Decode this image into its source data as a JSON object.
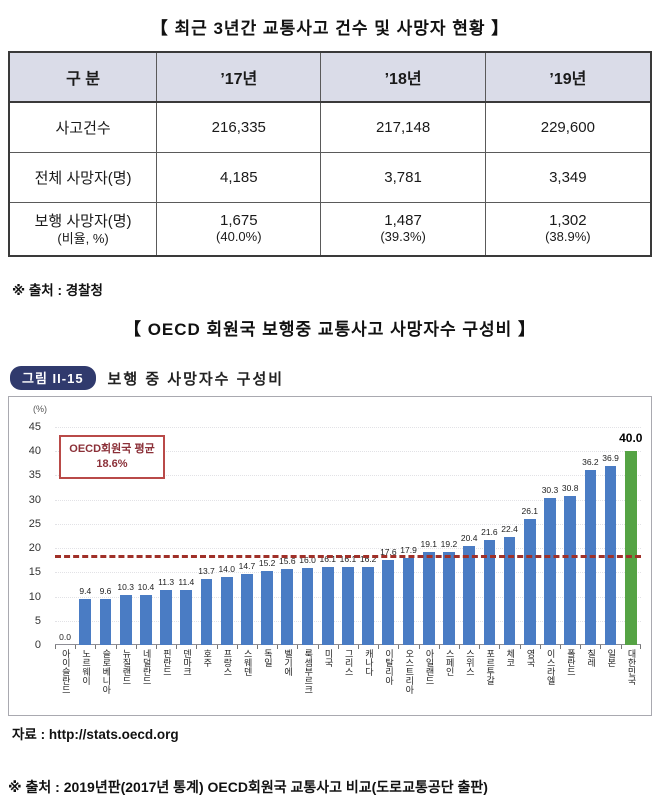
{
  "document": {
    "table_section": {
      "title": "【 최근 3년간 교통사고 건수 및 사망자 현황 】",
      "table": {
        "headers": [
          "구 분",
          "’17년",
          "’18년",
          "’19년"
        ],
        "rows": [
          {
            "label": "사고건수",
            "label_sub": "",
            "c1": "216,335",
            "c1s": "",
            "c2": "217,148",
            "c2s": "",
            "c3": "229,600",
            "c3s": ""
          },
          {
            "label": "전체 사망자(명)",
            "label_sub": "",
            "c1": "4,185",
            "c1s": "",
            "c2": "3,781",
            "c2s": "",
            "c3": "3,349",
            "c3s": ""
          },
          {
            "label": "보행 사망자(명)",
            "label_sub": "(비율, %)",
            "c1": "1,675",
            "c1s": "(40.0%)",
            "c2": "1,487",
            "c2s": "(39.3%)",
            "c3": "1,302",
            "c3s": "(38.9%)"
          }
        ]
      },
      "source": "※ 출처 : 경찰청"
    },
    "chart_section": {
      "title": "【 OECD 회원국 보행중 교통사고 사망자수 구성비 】",
      "figure_badge": "그림 II-15",
      "figure_title": "보행 중 사망자수 구성비"
    },
    "footer_source": "※ 출처 : 2019년판(2017년 통계) OECD회원국 교통사고 비교(도로교통공단 출판)"
  },
  "chart_data": {
    "type": "bar",
    "title": "보행 중 사망자수 구성비",
    "unit_label": "(%)",
    "ylim": [
      0,
      45
    ],
    "yticks": [
      0,
      5,
      10,
      15,
      20,
      25,
      30,
      35,
      40,
      45
    ],
    "grid": "faint-horizontal",
    "categories": [
      "아이슬란드",
      "노르웨이",
      "슬로베니아",
      "뉴질랜드",
      "네덜란드",
      "핀란드",
      "덴마크",
      "호주",
      "프랑스",
      "스웨덴",
      "독일",
      "벨기에",
      "룩셈부르크",
      "미국",
      "그리스",
      "캐나다",
      "이탈리아",
      "오스트리아",
      "아일랜드",
      "스페인",
      "스위스",
      "포르투갈",
      "체코",
      "영국",
      "이스라엘",
      "폴란드",
      "칠레",
      "일본",
      "대한민국"
    ],
    "values": [
      0.0,
      9.4,
      9.6,
      10.3,
      10.4,
      11.3,
      11.4,
      13.7,
      14.0,
      14.7,
      15.2,
      15.6,
      16.0,
      16.1,
      16.1,
      16.2,
      17.6,
      17.9,
      19.1,
      19.2,
      20.4,
      21.6,
      22.4,
      26.1,
      30.3,
      30.8,
      36.2,
      36.9,
      40.0
    ],
    "bar_color": "#4a7cc4",
    "highlight_index": 28,
    "highlight_color": "#55a344",
    "average_line": {
      "value": 18.6,
      "label": "OECD회원국 평균",
      "value_label": "18.6%",
      "color": "#a03028"
    },
    "source": "자료 : http://stats.oecd.org"
  }
}
